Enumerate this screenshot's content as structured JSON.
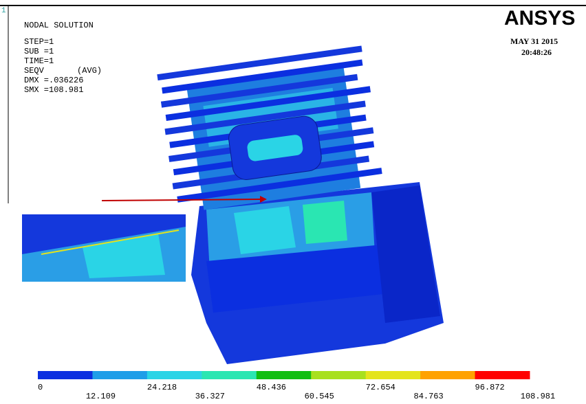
{
  "header": {
    "window": "1",
    "title": "NODAL SOLUTION",
    "step": "STEP=1",
    "sub": "SUB =1",
    "time": "TIME=1",
    "result": "SEQV",
    "avg": "(AVG)",
    "dmx": "DMX =.036226",
    "smx": "SMX =108.981",
    "logo": "ANSYS",
    "date": "MAY 31 2015",
    "clock": "20:48:26"
  },
  "legend": {
    "colors": [
      "#0b2fe0",
      "#1e9ee8",
      "#2ad4e6",
      "#2ae6b2",
      "#10be10",
      "#a8e01e",
      "#e4e41c",
      "#ffa200",
      "#ff0000"
    ],
    "labels": [
      "0",
      "12.109",
      "24.218",
      "36.327",
      "48.436",
      "60.545",
      "72.654",
      "84.763",
      "96.872",
      "108.981"
    ]
  }
}
